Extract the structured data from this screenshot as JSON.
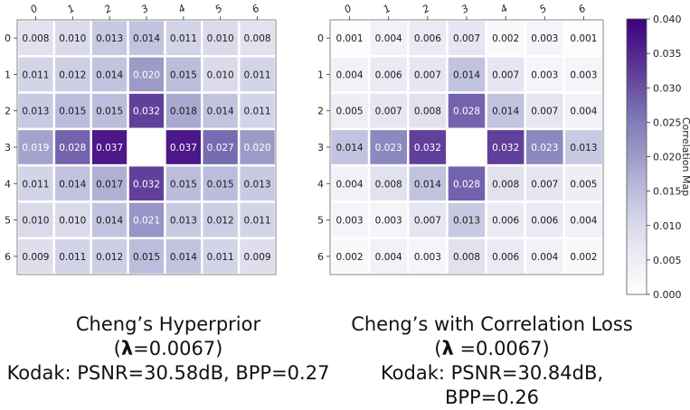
{
  "chart_data": [
    {
      "type": "heatmap",
      "x_ticks": [
        "0",
        "1",
        "2",
        "3",
        "4",
        "5",
        "6"
      ],
      "y_ticks": [
        "0",
        "1",
        "2",
        "3",
        "4",
        "5",
        "6"
      ],
      "values": [
        [
          0.008,
          0.01,
          0.013,
          0.014,
          0.011,
          0.01,
          0.008
        ],
        [
          0.011,
          0.012,
          0.014,
          0.02,
          0.015,
          0.01,
          0.011
        ],
        [
          0.013,
          0.015,
          0.015,
          0.032,
          0.018,
          0.014,
          0.011
        ],
        [
          0.019,
          0.028,
          0.037,
          null,
          0.037,
          0.027,
          0.02
        ],
        [
          0.011,
          0.014,
          0.017,
          0.032,
          0.015,
          0.015,
          0.013
        ],
        [
          0.01,
          0.01,
          0.014,
          0.021,
          0.013,
          0.012,
          0.011
        ],
        [
          0.009,
          0.011,
          0.012,
          0.015,
          0.014,
          0.011,
          0.009
        ]
      ],
      "value_range": [
        0.0,
        0.04
      ]
    },
    {
      "type": "heatmap",
      "x_ticks": [
        "0",
        "1",
        "2",
        "3",
        "4",
        "5",
        "6"
      ],
      "y_ticks": [
        "0",
        "1",
        "2",
        "3",
        "4",
        "5",
        "6"
      ],
      "values": [
        [
          0.001,
          0.004,
          0.006,
          0.007,
          0.002,
          0.003,
          0.001
        ],
        [
          0.004,
          0.006,
          0.007,
          0.014,
          0.007,
          0.003,
          0.003
        ],
        [
          0.005,
          0.007,
          0.008,
          0.028,
          0.014,
          0.007,
          0.004
        ],
        [
          0.014,
          0.023,
          0.032,
          null,
          0.032,
          0.023,
          0.013
        ],
        [
          0.004,
          0.008,
          0.014,
          0.028,
          0.008,
          0.007,
          0.005
        ],
        [
          0.003,
          0.003,
          0.007,
          0.013,
          0.006,
          0.006,
          0.004
        ],
        [
          0.002,
          0.004,
          0.003,
          0.008,
          0.006,
          0.004,
          0.002
        ]
      ],
      "value_range": [
        0.0,
        0.04
      ]
    }
  ],
  "colorbar": {
    "label": "Correlation Map",
    "ticks": [
      "0.000",
      "0.005",
      "0.010",
      "0.015",
      "0.020",
      "0.025",
      "0.030",
      "0.035",
      "0.040"
    ],
    "range": [
      0.0,
      0.04
    ],
    "color_low": "#ffffff",
    "color_high": "#3f007d"
  },
  "captions": [
    {
      "line1": "Cheng’s Hyperprior",
      "line2_open": "(",
      "lambda": "λ",
      "line2_rest": "=0.0067)",
      "line3": "Kodak: PSNR=30.58dB, BPP=0.27"
    },
    {
      "line1": "Cheng’s with Correlation Loss",
      "line2_open": "(",
      "lambda": "λ",
      "line2_rest": " =0.0067)",
      "line3": "Kodak: PSNR=30.84dB, BPP=0.26"
    }
  ]
}
